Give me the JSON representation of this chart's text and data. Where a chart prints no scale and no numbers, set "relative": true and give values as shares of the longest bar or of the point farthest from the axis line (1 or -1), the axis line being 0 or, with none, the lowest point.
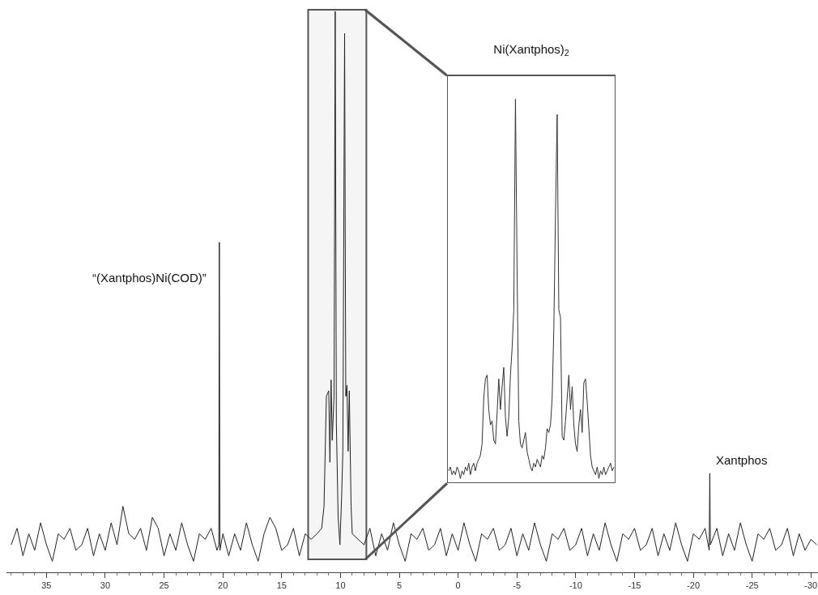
{
  "chart_data": [
    {
      "type": "line",
      "relative": true,
      "marker": "none",
      "line_style": "solid",
      "bands": [
        {
          "axis": "x",
          "from": 12.75,
          "to": 7.8,
          "color": "#555555"
        }
      ],
      "xlim": [
        38.4,
        -30.6
      ],
      "xticks": [
        35,
        30,
        25,
        20,
        15,
        10,
        5,
        0,
        -5,
        -10,
        -15,
        -20,
        -25,
        -30
      ],
      "annotations": [
        {
          "text": "“(Xantphos)Ni(COD)”",
          "x": 20.3,
          "y": 0.58
        },
        {
          "text": "Xantphos",
          "x": -21.4,
          "y": 0.16
        }
      ],
      "series": [
        {
          "color": "#222222",
          "x": [
            38.0,
            37.5,
            37.0,
            36.5,
            36.0,
            35.5,
            35.0,
            34.5,
            34.0,
            33.5,
            33.0,
            32.5,
            32.0,
            31.5,
            31.0,
            30.5,
            30.0,
            29.5,
            29.0,
            28.5,
            28.0,
            27.5,
            27.0,
            26.5,
            26.0,
            25.5,
            25.0,
            24.5,
            24.0,
            23.5,
            23.0,
            22.5,
            22.0,
            21.5,
            21.0,
            20.5,
            20.35,
            20.3,
            20.25,
            20.0,
            19.5,
            19.0,
            18.5,
            18.0,
            17.5,
            17.0,
            16.5,
            16.0,
            15.5,
            15.0,
            14.5,
            14.0,
            13.5,
            13.0,
            12.5,
            12.0,
            11.6,
            11.4,
            11.2,
            11.0,
            10.9,
            10.8,
            10.7,
            10.55,
            10.45,
            10.35,
            10.2,
            10.05,
            9.9,
            9.8,
            9.65,
            9.55,
            9.45,
            9.35,
            9.25,
            9.1,
            9.0,
            8.5,
            8.0,
            7.5,
            7.0,
            6.5,
            6.0,
            5.5,
            5.0,
            4.5,
            4.0,
            3.5,
            3.0,
            2.5,
            2.0,
            1.5,
            1.0,
            0.5,
            0.0,
            -0.5,
            -1.0,
            -1.5,
            -2.0,
            -2.5,
            -3.0,
            -3.5,
            -4.0,
            -4.5,
            -5.0,
            -5.5,
            -6.0,
            -6.5,
            -7.0,
            -7.5,
            -8.0,
            -8.5,
            -9.0,
            -9.5,
            -10.0,
            -10.5,
            -11.0,
            -11.5,
            -12.0,
            -12.5,
            -13.0,
            -13.5,
            -14.0,
            -14.5,
            -15.0,
            -15.5,
            -16.0,
            -16.5,
            -17.0,
            -17.5,
            -18.0,
            -18.5,
            -19.0,
            -19.5,
            -20.0,
            -20.5,
            -21.0,
            -21.35,
            -21.4,
            -21.45,
            -22.0,
            -22.5,
            -23.0,
            -23.5,
            -24.0,
            -24.5,
            -25.0,
            -25.5,
            -26.0,
            -26.5,
            -27.0,
            -27.5,
            -28.0,
            -28.5,
            -29.0,
            -29.5,
            -30.0,
            -30.5
          ],
          "values": [
            0.03,
            0.06,
            0.01,
            0.05,
            0.02,
            0.07,
            0.03,
            0.0,
            0.05,
            0.04,
            0.06,
            0.02,
            0.03,
            0.06,
            0.01,
            0.05,
            0.02,
            0.07,
            0.03,
            0.1,
            0.05,
            0.04,
            0.06,
            0.02,
            0.08,
            0.06,
            0.01,
            0.05,
            0.02,
            0.07,
            0.03,
            0.0,
            0.05,
            0.04,
            0.06,
            0.02,
            0.03,
            0.58,
            0.02,
            0.05,
            0.01,
            0.05,
            0.02,
            0.07,
            0.03,
            0.0,
            0.05,
            0.08,
            0.06,
            0.02,
            0.03,
            0.06,
            0.01,
            0.05,
            0.04,
            0.05,
            0.06,
            0.1,
            0.3,
            0.31,
            0.18,
            0.33,
            0.22,
            0.3,
            1.0,
            0.25,
            0.08,
            0.03,
            0.12,
            0.2,
            0.96,
            0.3,
            0.32,
            0.2,
            0.31,
            0.1,
            0.05,
            0.04,
            0.03,
            0.06,
            0.01,
            0.05,
            0.02,
            0.07,
            0.03,
            0.0,
            0.05,
            0.04,
            0.06,
            0.02,
            0.03,
            0.06,
            0.01,
            0.05,
            0.02,
            0.07,
            0.03,
            0.0,
            0.05,
            0.04,
            0.06,
            0.02,
            0.03,
            0.06,
            0.01,
            0.05,
            0.02,
            0.07,
            0.03,
            0.0,
            0.05,
            0.04,
            0.06,
            0.02,
            0.03,
            0.06,
            0.01,
            0.05,
            0.02,
            0.07,
            0.03,
            0.0,
            0.05,
            0.04,
            0.06,
            0.02,
            0.03,
            0.06,
            0.01,
            0.05,
            0.02,
            0.07,
            0.03,
            0.0,
            0.05,
            0.04,
            0.06,
            0.02,
            0.16,
            0.03,
            0.06,
            0.01,
            0.05,
            0.02,
            0.07,
            0.03,
            0.0,
            0.05,
            0.04,
            0.06,
            0.02,
            0.03,
            0.06,
            0.01,
            0.05,
            0.02,
            0.04,
            0.03
          ]
        }
      ]
    },
    {
      "type": "line",
      "relative": true,
      "marker": "none",
      "line_style": "solid",
      "title": "Ni(Xantphos)$_{2}$",
      "categories": [
        null,
        null,
        null,
        null,
        null,
        null,
        null,
        null,
        null,
        null,
        null,
        null,
        null,
        null,
        null,
        null,
        null,
        null,
        null,
        null,
        null,
        null,
        null,
        null,
        null,
        null,
        null,
        null,
        null,
        null,
        null,
        null,
        null,
        null,
        null,
        null,
        null,
        null,
        null,
        null,
        null,
        null,
        null,
        null,
        null,
        null,
        null,
        null,
        null,
        null,
        null,
        null,
        null,
        null,
        null,
        null,
        null,
        null,
        null,
        null,
        null,
        null,
        null,
        null,
        null,
        null,
        null,
        null,
        null,
        null,
        null,
        null,
        null,
        null,
        null,
        null,
        null,
        null,
        null,
        null,
        null,
        null,
        null,
        null,
        null,
        null,
        null,
        null,
        null,
        null,
        null,
        null,
        null,
        null,
        null,
        null,
        null,
        null,
        null,
        null
      ],
      "series": [
        {
          "color": "#333333",
          "values": [
            0.03,
            0.04,
            0.02,
            0.03,
            0.02,
            0.04,
            0.03,
            0.01,
            0.03,
            0.02,
            0.04,
            0.03,
            0.05,
            0.02,
            0.04,
            0.05,
            0.03,
            0.05,
            0.06,
            0.07,
            0.1,
            0.22,
            0.27,
            0.28,
            0.19,
            0.15,
            0.16,
            0.11,
            0.1,
            0.18,
            0.27,
            0.19,
            0.25,
            0.3,
            0.17,
            0.12,
            0.17,
            0.28,
            0.35,
            0.45,
            1.0,
            0.55,
            0.16,
            0.1,
            0.09,
            0.11,
            0.13,
            0.08,
            0.06,
            0.04,
            0.03,
            0.05,
            0.04,
            0.06,
            0.05,
            0.04,
            0.07,
            0.06,
            0.09,
            0.14,
            0.13,
            0.15,
            0.22,
            0.4,
            0.7,
            0.96,
            0.45,
            0.43,
            0.12,
            0.11,
            0.16,
            0.22,
            0.28,
            0.19,
            0.25,
            0.15,
            0.1,
            0.08,
            0.15,
            0.19,
            0.13,
            0.26,
            0.27,
            0.21,
            0.14,
            0.07,
            0.04,
            0.03,
            0.02,
            0.04,
            0.01,
            0.03,
            0.02,
            0.04,
            0.02,
            0.03,
            0.04,
            0.05,
            0.03,
            0.04
          ]
        }
      ]
    }
  ]
}
